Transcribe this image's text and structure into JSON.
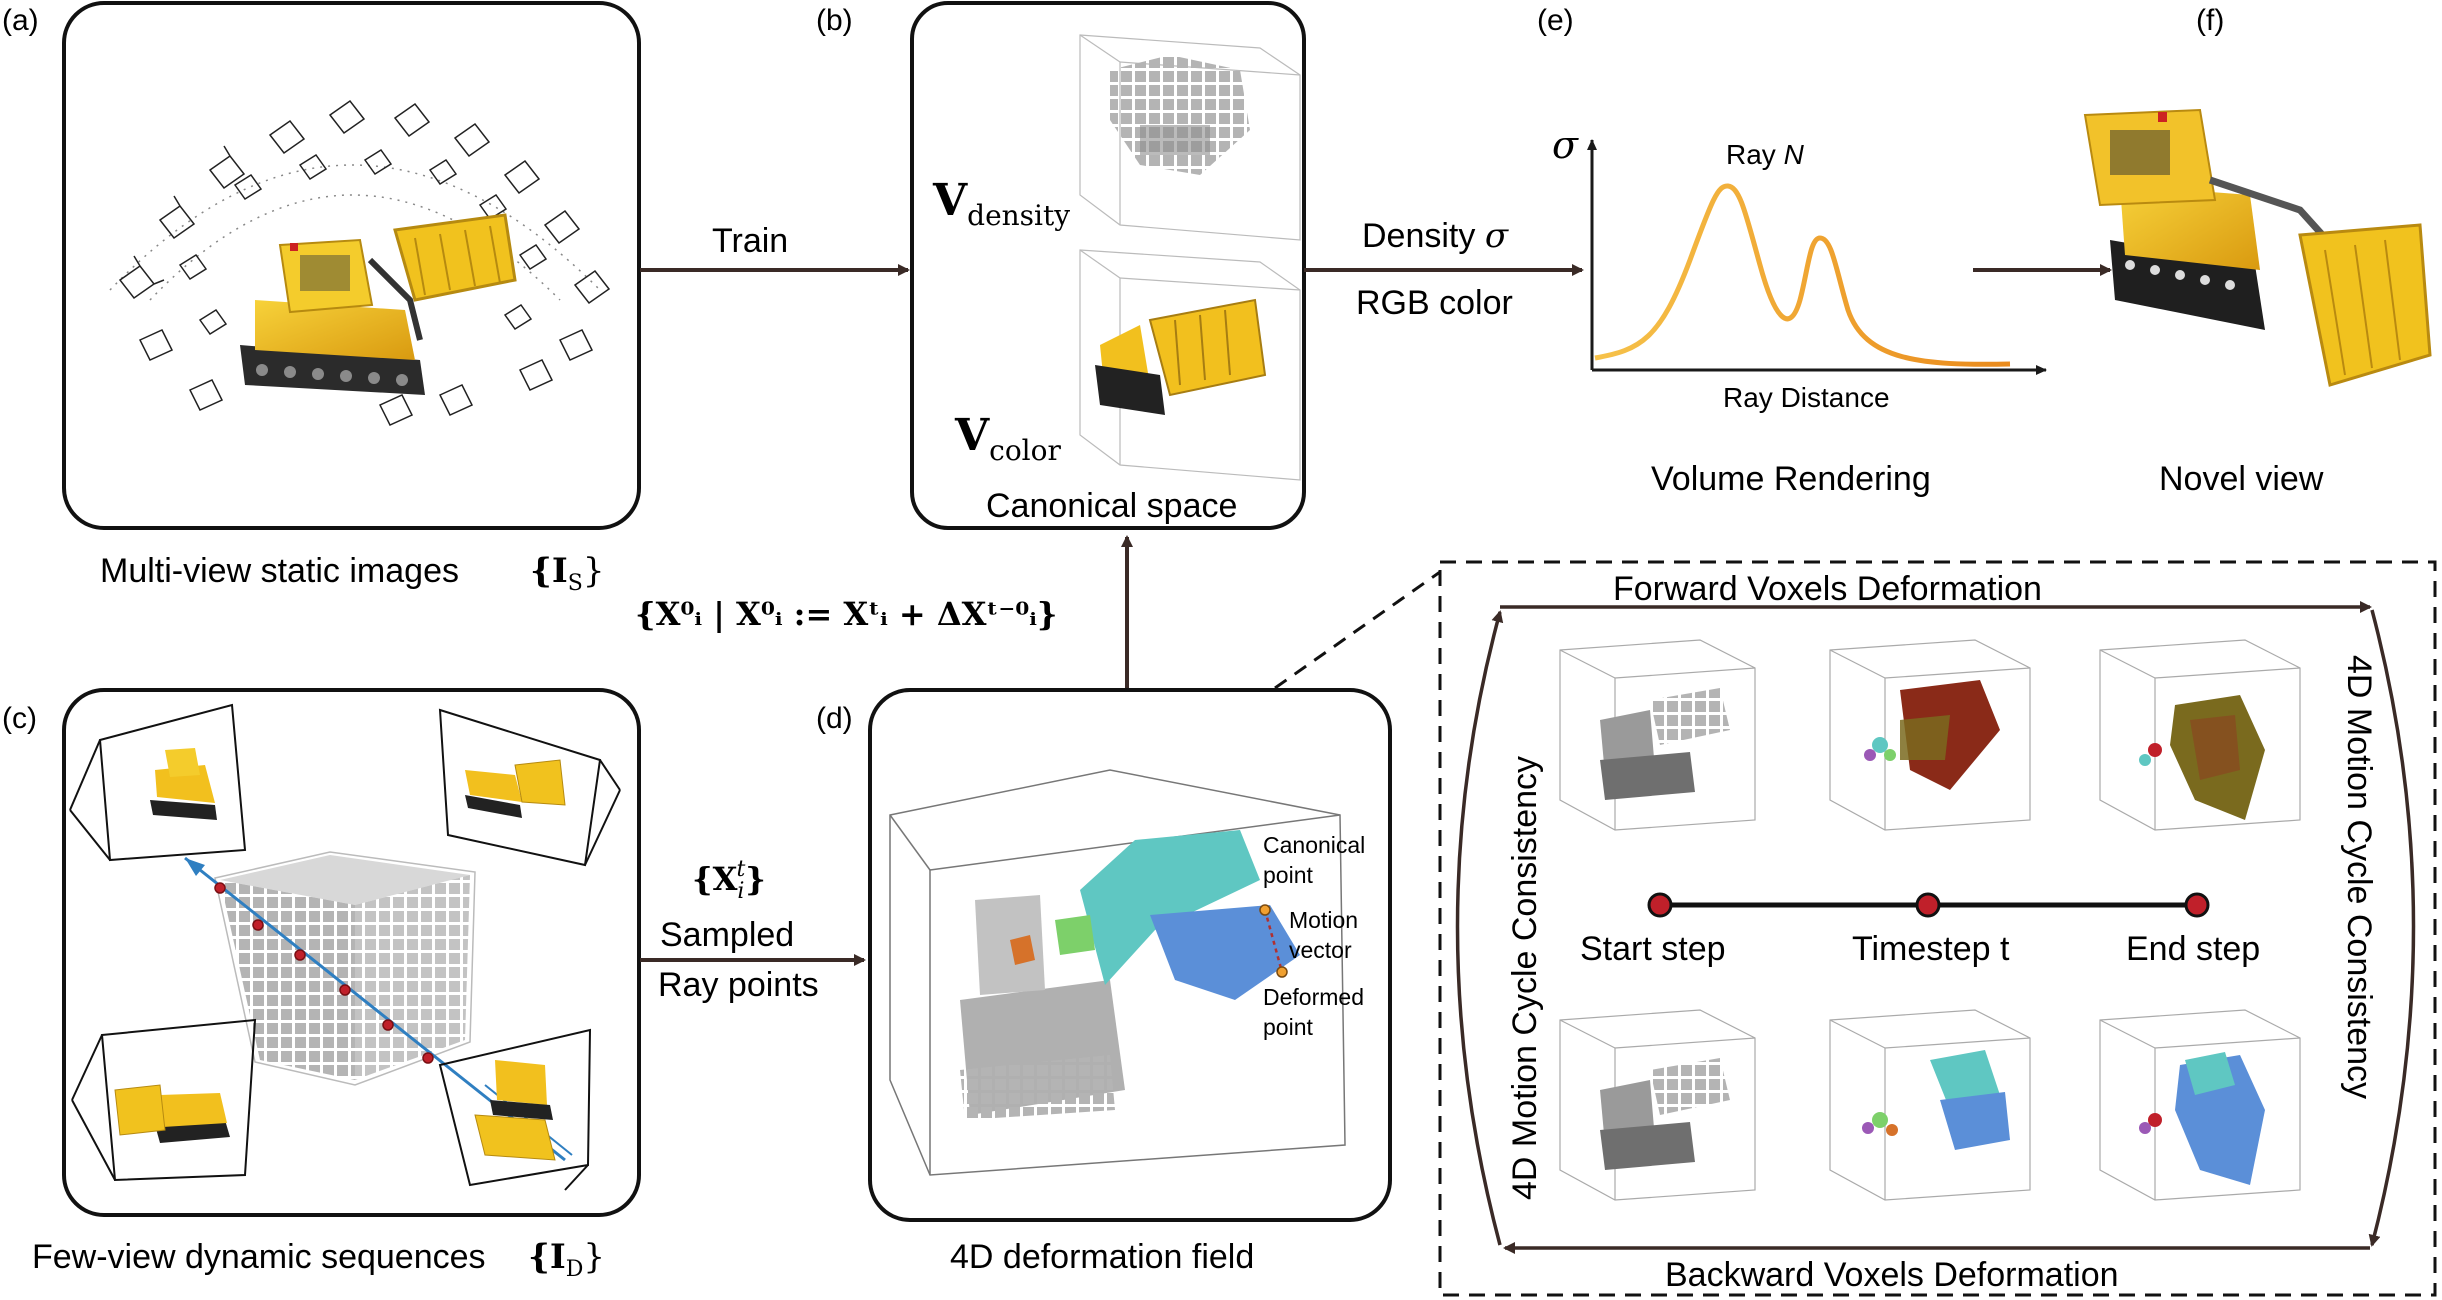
{
  "panels": {
    "a": {
      "label": "(a)",
      "caption": "Multi-view static images",
      "caption_math": "{I",
      "caption_math_sub": "S",
      "caption_math_end": "}"
    },
    "b": {
      "label": "(b)",
      "v_density": "V",
      "v_density_sub": "density",
      "v_color": "V",
      "v_color_sub": "color",
      "caption": "Canonical space"
    },
    "c": {
      "label": "(c)",
      "caption": "Few-view dynamic sequences",
      "caption_math": "{I",
      "caption_math_sub": "D",
      "caption_math_end": "}"
    },
    "d": {
      "label": "(d)",
      "caption": "4D deformation field",
      "canonical_point": [
        "Canonical",
        "point"
      ],
      "motion_vector": [
        "Motion",
        "vector"
      ],
      "deformed_point": [
        "Deformed",
        "point"
      ]
    },
    "e": {
      "label": "(e)",
      "y_axis": "σ",
      "ray_label": "Ray ",
      "ray_label_italic": "N",
      "x_axis": "Ray Distance",
      "caption": "Volume Rendering"
    },
    "f": {
      "label": "(f)",
      "caption": "Novel view"
    }
  },
  "arrows": {
    "train": "Train",
    "density": "Density ",
    "density_sym": "σ",
    "rgb": "RGB color",
    "sampled_math": "{X",
    "sampled_math_sub": "i",
    "sampled_math_sup": "t",
    "sampled_math_end": "}",
    "sampled": "Sampled",
    "ray_points": "Ray points",
    "formula": "{X⁰ᵢ | X⁰ᵢ := Xᵗᵢ + ΔXᵗ⁻⁰ᵢ}"
  },
  "inset": {
    "forward": "Forward Voxels Deformation",
    "backward": "Backward Voxels Deformation",
    "left_side": "4D Motion Cycle Consistency",
    "right_side": "4D Motion Cycle Consistency",
    "steps": [
      "Start step",
      "Timestep t",
      "End step"
    ]
  },
  "colors": {
    "bulldozer_yellow": "#f2c01e",
    "track_dark": "#2b2b2b",
    "voxel_gray": "#a9a9a9",
    "ray_blue": "#2f7fc1",
    "curve_orange": "#f0a030",
    "dot_red": "#c0202a",
    "teal": "#5fc7c2",
    "blue": "#5b8fd8",
    "olive": "#7a6a1e",
    "dark_red": "#8a2a18"
  }
}
